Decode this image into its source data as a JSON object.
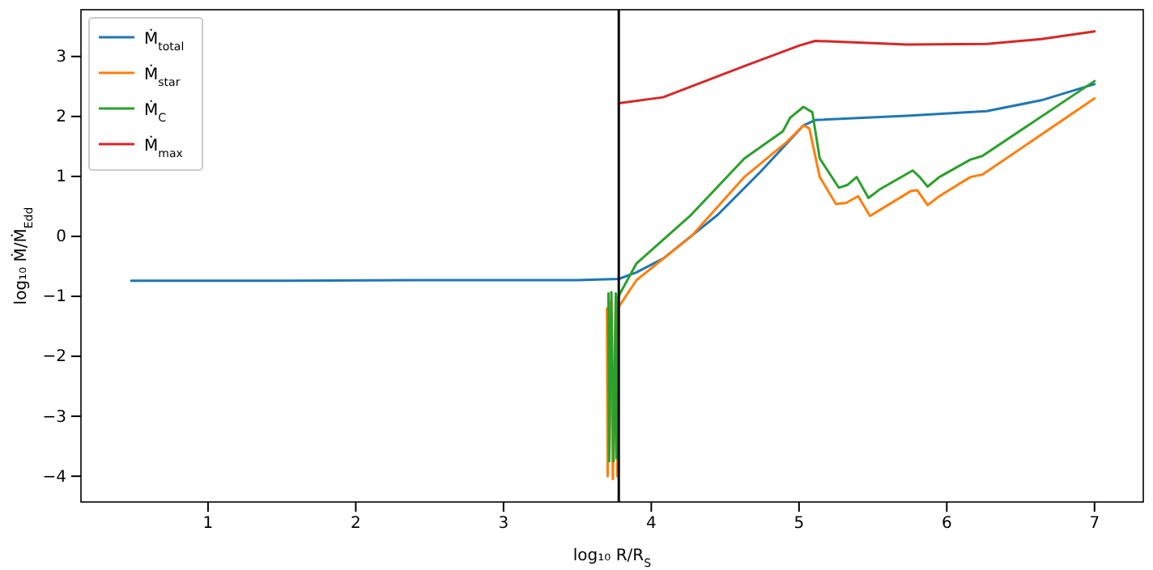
{
  "chart_data": {
    "type": "line",
    "xlabel": "log₁₀ R/R$_{S}$",
    "ylabel": "log₁₀ Ṁ/Ṁ$_{Edd}$",
    "xlim": [
      0.14,
      7.33
    ],
    "ylim": [
      -4.43,
      3.78
    ],
    "xticks": [
      1,
      2,
      3,
      4,
      5,
      6,
      7
    ],
    "yticks": [
      -4,
      -3,
      -2,
      -1,
      0,
      1,
      2,
      3
    ],
    "grid": false,
    "legend": "top left",
    "marker": "none",
    "line_style": "solid",
    "ref_lines": [
      {
        "axis": "x",
        "value": 3.78,
        "color": "#000000"
      }
    ],
    "series": [
      {
        "name": "Ṁ$_{total}$",
        "color": "#1f77b4",
        "x": [
          0.48,
          1.5,
          2.5,
          3.5,
          3.78,
          3.9,
          4.08,
          4.45,
          4.74,
          5.03,
          5.11,
          5.73,
          6.27,
          6.64,
          7.0
        ],
        "values": [
          -0.74,
          -0.74,
          -0.73,
          -0.73,
          -0.71,
          -0.6,
          -0.37,
          0.36,
          1.08,
          1.85,
          1.94,
          2.01,
          2.09,
          2.27,
          2.54
        ]
      },
      {
        "name": "Ṁ$_{star}$",
        "color": "#ff7f0e",
        "x": [
          3.7,
          3.705,
          3.72,
          3.74,
          3.76,
          3.77,
          3.778,
          3.9,
          4.27,
          4.63,
          4.92,
          5.03,
          5.07,
          5.14,
          5.25,
          5.32,
          5.4,
          5.48,
          5.58,
          5.76,
          5.8,
          5.87,
          5.95,
          6.16,
          6.24,
          7.0
        ],
        "values": [
          -1.2,
          -4.0,
          -1.1,
          -4.05,
          -1.0,
          -4.0,
          -1.18,
          -0.73,
          0.0,
          0.99,
          1.58,
          1.85,
          1.8,
          0.99,
          0.54,
          0.56,
          0.67,
          0.34,
          0.49,
          0.76,
          0.77,
          0.52,
          0.67,
          0.99,
          1.03,
          2.3
        ]
      },
      {
        "name": "Ṁ$_{C}$",
        "color": "#2ca02c",
        "x": [
          3.71,
          3.715,
          3.73,
          3.745,
          3.76,
          3.765,
          3.778,
          3.9,
          4.27,
          4.63,
          4.89,
          4.94,
          5.03,
          5.09,
          5.14,
          5.27,
          5.33,
          5.39,
          5.47,
          5.55,
          5.77,
          5.82,
          5.87,
          5.95,
          6.16,
          6.24,
          7.0
        ],
        "values": [
          -0.95,
          -3.75,
          -0.93,
          -3.75,
          -0.95,
          -3.7,
          -1.0,
          -0.45,
          0.36,
          1.3,
          1.75,
          1.98,
          2.16,
          2.07,
          1.3,
          0.81,
          0.86,
          0.99,
          0.64,
          0.79,
          1.1,
          0.98,
          0.83,
          0.99,
          1.28,
          1.34,
          2.59
        ]
      },
      {
        "name": "Ṁ$_{max}$",
        "color": "#d62728",
        "x": [
          3.78,
          4.08,
          4.63,
          5.0,
          5.11,
          5.73,
          6.27,
          6.64,
          7.0
        ],
        "values": [
          2.22,
          2.32,
          2.84,
          3.18,
          3.26,
          3.2,
          3.21,
          3.29,
          3.42
        ]
      }
    ]
  }
}
